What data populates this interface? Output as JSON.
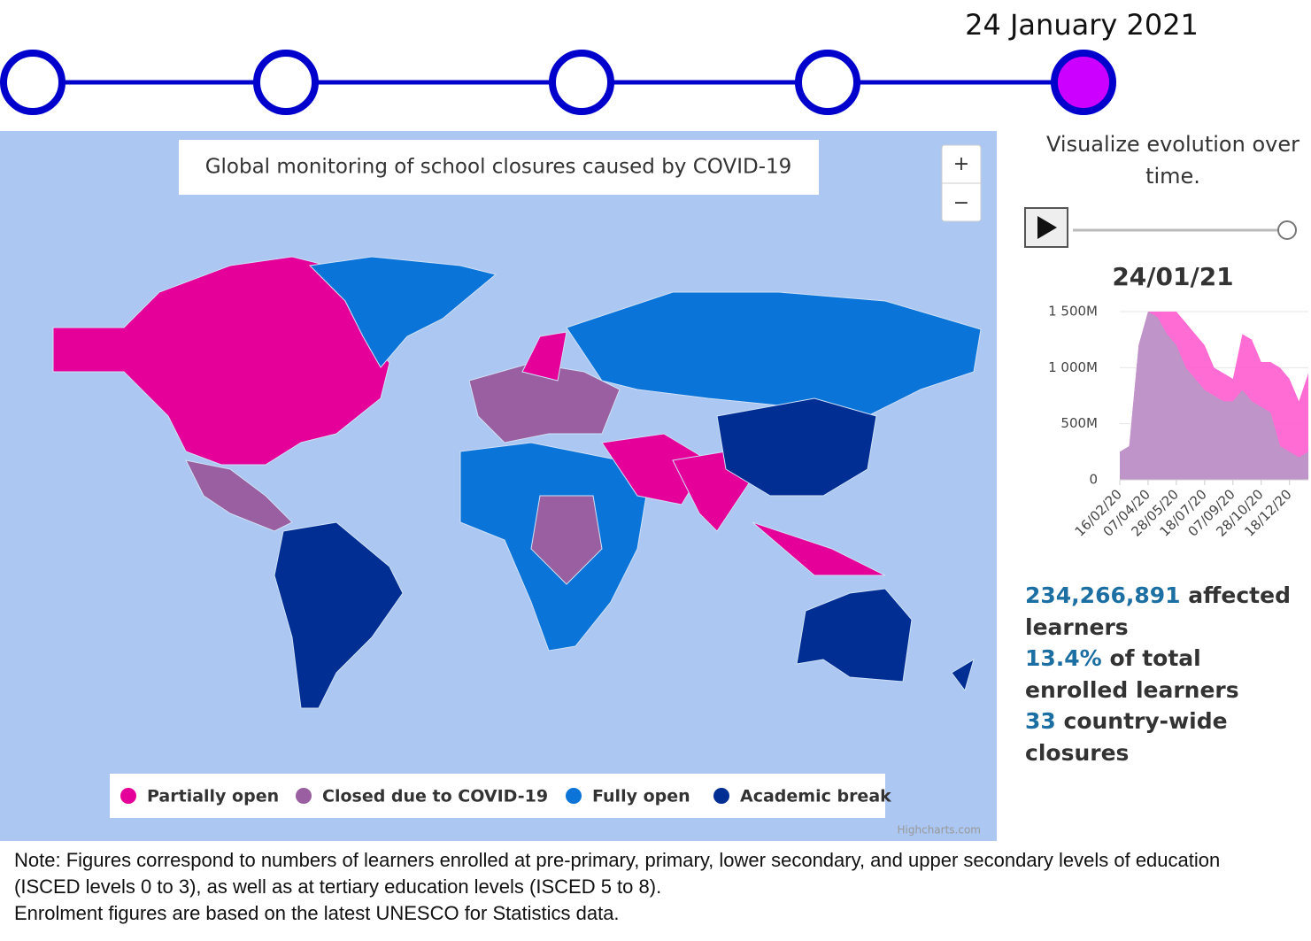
{
  "timeline": {
    "date": "24 January 2021"
  },
  "map": {
    "title": "Global monitoring of school closures caused by COVID-19",
    "zoom_in": "+",
    "zoom_out": "−",
    "credit": "Highcharts.com",
    "legend": [
      {
        "label": "Partially open",
        "color": "#e6009a"
      },
      {
        "label": "Closed due to COVID-19",
        "color": "#9a5fa0"
      },
      {
        "label": "Fully open",
        "color": "#0b74d8"
      },
      {
        "label": "Academic break",
        "color": "#002e92"
      }
    ]
  },
  "sidebar": {
    "heading": "Visualize evolution over time.",
    "stats": [
      {
        "value": "234,266,891",
        "text": "affected learners"
      },
      {
        "value": "13.4%",
        "text": "of total enrolled learners"
      },
      {
        "value": "33",
        "text": "country-wide closures"
      }
    ]
  },
  "chart_data": {
    "type": "area",
    "title": "24/01/21",
    "categories": [
      "16/02/20",
      null,
      null,
      "07/04/20",
      null,
      null,
      "28/05/20",
      null,
      null,
      "18/07/20",
      null,
      null,
      "07/09/20",
      null,
      null,
      "28/10/20",
      null,
      null,
      "18/12/20",
      null,
      null
    ],
    "series": [
      {
        "color": "#ff5ccf",
        "values": [
          250,
          300,
          1200,
          1500,
          1500,
          1500,
          1500,
          1400,
          1300,
          1200,
          1000,
          950,
          900,
          1300,
          1250,
          1050,
          1050,
          1000,
          900,
          700,
          950
        ]
      },
      {
        "color": "#b89ac8",
        "values": [
          250,
          300,
          1200,
          1500,
          1450,
          1300,
          1200,
          1000,
          900,
          800,
          750,
          700,
          700,
          800,
          700,
          650,
          600,
          300,
          250,
          200,
          250
        ]
      }
    ],
    "ylim": [
      0,
      1500
    ],
    "yticks": [
      0,
      {
        "value": 500,
        "label": "500M"
      },
      {
        "value": 1000,
        "label": "1 000M"
      },
      {
        "value": 1500,
        "label": "1 500M"
      }
    ],
    "grid": true
  },
  "note": {
    "label": "Note",
    "text": ": Figures correspond to numbers of learners enrolled at pre-primary, primary, lower secondary, and upper secondary levels of education (ISCED levels 0 to 3), as well as at tertiary education levels (ISCED 5 to 8).",
    "line2": "Enrolment figures are based on the latest UNESCO for Statistics data."
  }
}
